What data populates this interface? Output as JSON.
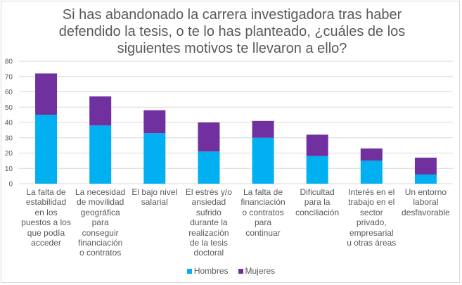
{
  "chart_data": {
    "type": "bar",
    "stacked": true,
    "title": "Si has abandonado la carrera investigadora tras haber\ndefendido la tesis, o te lo has planteado, ¿cuáles de los\nsiguientes motivos te llevaron a ello?",
    "xlabel": "",
    "ylabel": "",
    "ylim": [
      0,
      80
    ],
    "yticks": [
      "0",
      "10",
      "20",
      "30",
      "40",
      "50",
      "60",
      "70",
      "80"
    ],
    "grid": true,
    "legend_position": "bottom",
    "categories": [
      "La falta de\nestabilidad\nen los\npuestos a los\nque podía\nacceder",
      "La necesidad\nde movilidad\ngeográfica\npara\nconseguir\nfinanciación\no contratos",
      "El bajo nivel\nsalarial",
      "El estrés y/o\nansiedad\nsufrido\ndurante la\nrealización\nde la tesis\ndoctoral",
      "La falta de\nfinanciación\no contratos\npara\ncontinuar",
      "Dificultad\npara la\nconciliación",
      "Interés en el\ntrabajo en el\nsector\nprivado,\nempresarial\nu otras áreas",
      "Un entorno\nlaboral\ndesfavorable"
    ],
    "series": [
      {
        "name": "Hombres",
        "color": "#00B0F0",
        "values": [
          45,
          38,
          33,
          21,
          30,
          18,
          15,
          6
        ]
      },
      {
        "name": "Mujeres",
        "color": "#7030A0",
        "values": [
          27,
          19,
          15,
          19,
          11,
          14,
          8,
          11
        ]
      }
    ]
  }
}
